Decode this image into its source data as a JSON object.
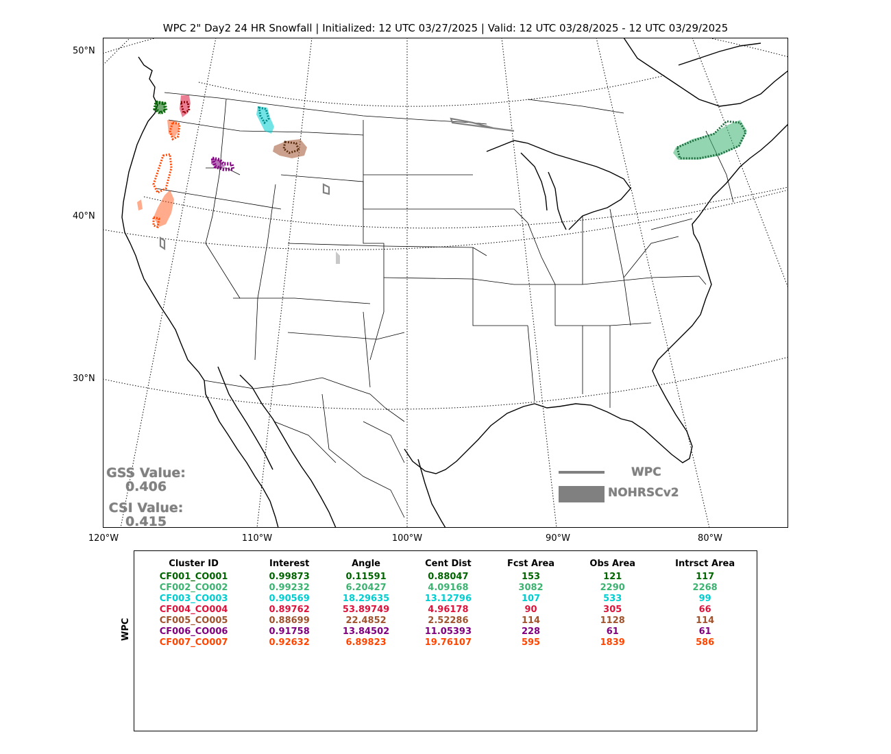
{
  "title": "WPC 2\" Day2 24 HR Snowfall | Initialized: 12 UTC 03/27/2025 | Valid: 12 UTC 03/28/2025 - 12 UTC 03/29/2025",
  "lat_labels": [
    "50°N",
    "40°N",
    "30°N"
  ],
  "lon_labels": [
    "120°W",
    "110°W",
    "100°W",
    "90°W",
    "80°W"
  ],
  "scores": {
    "gss_label": "GSS Value:",
    "gss_value": "0.406",
    "csi_label": "CSI Value:",
    "csi_value": "0.415"
  },
  "legend": {
    "forecast_label": "WPC",
    "observed_label": "NOHRSCv2",
    "color": "#808080"
  },
  "table": {
    "side_label": "WPC",
    "headers": [
      "Cluster ID",
      "Interest",
      "Angle",
      "Cent Dist",
      "Fcst Area",
      "Obs Area",
      "Intrsct Area"
    ],
    "rows": [
      {
        "id": "CF001_CO001",
        "interest": "0.99873",
        "angle": "0.11591",
        "cent_dist": "0.88047",
        "fcst_area": "153",
        "obs_area": "121",
        "intrsct_area": "117",
        "color": "#006400"
      },
      {
        "id": "CF002_CO002",
        "interest": "0.99232",
        "angle": "6.20427",
        "cent_dist": "4.09168",
        "fcst_area": "3082",
        "obs_area": "2290",
        "intrsct_area": "2268",
        "color": "#3cb371"
      },
      {
        "id": "CF003_CO003",
        "interest": "0.90569",
        "angle": "18.29635",
        "cent_dist": "13.12796",
        "fcst_area": "107",
        "obs_area": "533",
        "intrsct_area": "99",
        "color": "#00ced1"
      },
      {
        "id": "CF004_CO004",
        "interest": "0.89762",
        "angle": "53.89749",
        "cent_dist": "4.96178",
        "fcst_area": "90",
        "obs_area": "305",
        "intrsct_area": "66",
        "color": "#dc143c"
      },
      {
        "id": "CF005_CO005",
        "interest": "0.88699",
        "angle": "22.4852",
        "cent_dist": "2.52286",
        "fcst_area": "114",
        "obs_area": "1128",
        "intrsct_area": "114",
        "color": "#a0522d"
      },
      {
        "id": "CF006_CO006",
        "interest": "0.91758",
        "angle": "13.84502",
        "cent_dist": "11.05393",
        "fcst_area": "228",
        "obs_area": "61",
        "intrsct_area": "61",
        "color": "#800080"
      },
      {
        "id": "CF007_CO007",
        "interest": "0.92632",
        "angle": "6.89823",
        "cent_dist": "19.76107",
        "fcst_area": "595",
        "obs_area": "1839",
        "intrsct_area": "586",
        "color": "#ff4500"
      }
    ]
  }
}
